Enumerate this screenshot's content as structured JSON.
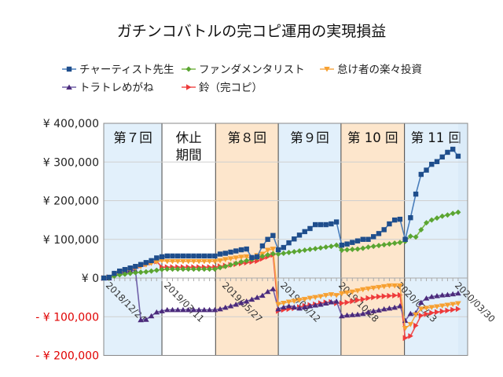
{
  "chart_data": {
    "type": "line",
    "title": "ガチンコバトルの完コピ運用の実現損益",
    "xlabel": "",
    "ylabel": "",
    "ylim": [
      -200000,
      400000
    ],
    "yticks": [
      400000,
      300000,
      200000,
      100000,
      0,
      -100000,
      -200000
    ],
    "ytick_labels": [
      "¥ 400,000",
      "¥ 300,000",
      "¥ 200,000",
      "¥ 100,000",
      "¥ 0",
      "- ¥ 100,000",
      "- ¥ 200,000"
    ],
    "negative_label_color": "#e00000",
    "grid": true,
    "legend_position": "top",
    "xtick_labels": [
      "2018/12/24",
      "2019/03/11",
      "2019/05/27",
      "2019/08/12",
      "2019/10/28",
      "2020/01/13",
      "2020/03/30"
    ],
    "x": [
      "2018/12/24",
      "2018/12/31",
      "2019/01/07",
      "2019/01/14",
      "2019/01/21",
      "2019/01/28",
      "2019/02/04",
      "2019/02/11",
      "2019/02/18",
      "2019/02/25",
      "2019/03/04",
      "2019/03/11",
      "2019/03/18",
      "2019/03/25",
      "2019/04/01",
      "2019/04/08",
      "2019/04/15",
      "2019/04/22",
      "2019/04/29",
      "2019/05/06",
      "2019/05/13",
      "2019/05/20",
      "2019/05/27",
      "2019/06/03",
      "2019/06/10",
      "2019/06/17",
      "2019/06/24",
      "2019/07/01",
      "2019/07/08",
      "2019/07/15",
      "2019/07/22",
      "2019/07/29",
      "2019/08/05",
      "2019/08/12",
      "2019/08/19",
      "2019/08/26",
      "2019/09/02",
      "2019/09/09",
      "2019/09/16",
      "2019/09/23",
      "2019/09/30",
      "2019/10/07",
      "2019/10/14",
      "2019/10/21",
      "2019/10/28",
      "2019/11/04",
      "2019/11/11",
      "2019/11/18",
      "2019/11/25",
      "2019/12/02",
      "2019/12/09",
      "2019/12/16",
      "2019/12/23",
      "2019/12/30",
      "2020/01/06",
      "2020/01/13",
      "2020/01/20",
      "2020/01/27",
      "2020/02/03",
      "2020/02/10",
      "2020/02/17",
      "2020/02/24",
      "2020/03/02",
      "2020/03/09",
      "2020/03/16",
      "2020/03/23",
      "2020/03/30",
      "2020/04/06"
    ],
    "periods": [
      {
        "label": "第７回",
        "start": "2018/12/24",
        "end": "2019/03/11",
        "color": "#e2f0fb"
      },
      {
        "label": "休止\n期間",
        "start": "2019/03/11",
        "end": "2019/05/21",
        "color": "#ffffff"
      },
      {
        "label": "第８回",
        "start": "2019/05/21",
        "end": "2019/08/12",
        "color": "#fde6cc"
      },
      {
        "label": "第９回",
        "start": "2019/08/12",
        "end": "2019/11/03",
        "color": "#e2f0fb"
      },
      {
        "label": "第 10 回",
        "start": "2019/11/03",
        "end": "2020/01/26",
        "color": "#fde6cc"
      },
      {
        "label": "第 11 回",
        "start": "2020/01/26",
        "end": "2020/04/20",
        "color": "#e2f0fb"
      }
    ],
    "series": [
      {
        "name": "チャーティスト先生",
        "marker": "square",
        "color": "#1f4e8c",
        "line_color": "#4a7ebb",
        "values": [
          0,
          2000,
          12000,
          18000,
          22000,
          26000,
          30000,
          35000,
          40000,
          45000,
          52000,
          55000,
          57000,
          57000,
          57000,
          57000,
          57000,
          57000,
          57000,
          57000,
          57000,
          57000,
          62000,
          64000,
          67000,
          70000,
          73000,
          75000,
          53000,
          55000,
          83000,
          100000,
          110000,
          73000,
          79000,
          91000,
          101000,
          111000,
          120000,
          128000,
          138000,
          138000,
          138000,
          140000,
          145000,
          85000,
          88000,
          92000,
          96000,
          100000,
          100000,
          107000,
          115000,
          125000,
          140000,
          150000,
          152000,
          100000,
          156000,
          217000,
          268000,
          279000,
          294000,
          301000,
          313000,
          325000,
          333000,
          315000
        ]
      },
      {
        "name": "ファンダメンタリスト",
        "marker": "diamond",
        "color": "#5aa532",
        "line_color": "#7ab648",
        "values": [
          0,
          0,
          5000,
          8000,
          10000,
          12000,
          14000,
          15000,
          16000,
          18000,
          20000,
          22000,
          23000,
          23000,
          23000,
          23000,
          23000,
          23000,
          23000,
          23000,
          23000,
          23000,
          27000,
          30000,
          34000,
          38000,
          42000,
          45000,
          48000,
          52000,
          56000,
          60000,
          63000,
          62000,
          64000,
          66000,
          68000,
          70000,
          72000,
          74000,
          76000,
          78000,
          80000,
          82000,
          85000,
          72000,
          73000,
          74000,
          75000,
          77000,
          80000,
          82000,
          84000,
          86000,
          88000,
          90000,
          92000,
          95000,
          108000,
          106000,
          125000,
          143000,
          150000,
          155000,
          160000,
          163000,
          167000,
          170000
        ]
      },
      {
        "name": "怠け者の楽々投資",
        "marker": "triangle-down",
        "color": "#f7a030",
        "line_color": "#f5a84a",
        "values": [
          0,
          2000,
          8000,
          14000,
          18000,
          22000,
          26000,
          30000,
          34000,
          38000,
          42000,
          45000,
          43000,
          43000,
          43000,
          43000,
          43000,
          43000,
          43000,
          43000,
          43000,
          43000,
          45000,
          48000,
          50000,
          52000,
          54000,
          55000,
          50000,
          58000,
          62000,
          72000,
          75000,
          -68000,
          -65000,
          -62000,
          -60000,
          -57000,
          -55000,
          -52000,
          -50000,
          -48000,
          -45000,
          -43000,
          -45000,
          -40000,
          -38000,
          -36000,
          -33000,
          -30000,
          -28000,
          -26000,
          -24000,
          -22000,
          -20000,
          -20000,
          -20000,
          -130000,
          -120000,
          -95000,
          -80000,
          -78000,
          -76000,
          -74000,
          -72000,
          -70000,
          -68000,
          -66000
        ]
      },
      {
        "name": "トラトレめがね",
        "marker": "triangle-up",
        "color": "#4b2a7b",
        "line_color": "#7060a8",
        "values": [
          0,
          0,
          12000,
          16000,
          18000,
          20000,
          19000,
          -108000,
          -107000,
          -98000,
          -88000,
          -85000,
          -82000,
          -82000,
          -82000,
          -82000,
          -82000,
          -82000,
          -82000,
          -82000,
          -82000,
          -82000,
          -80000,
          -76000,
          -72000,
          -68000,
          -64000,
          -60000,
          -55000,
          -50000,
          -45000,
          -35000,
          -28000,
          -80000,
          -75000,
          -72000,
          -75000,
          -78000,
          -75000,
          -72000,
          -70000,
          -68000,
          -65000,
          -62000,
          -60000,
          -98000,
          -96000,
          -95000,
          -94000,
          -92000,
          -88000,
          -85000,
          -83000,
          -80000,
          -78000,
          -76000,
          -72000,
          -110000,
          -92000,
          -90000,
          -63000,
          -52000,
          -48000,
          -46000,
          -44000,
          -43000,
          -41000,
          -39000
        ]
      },
      {
        "name": "鈴（完コピ）",
        "marker": "triangle-right",
        "color": "#ee3a3a",
        "line_color": "#f05050",
        "values": [
          0,
          2000,
          10000,
          15000,
          20000,
          24000,
          28000,
          32000,
          36000,
          40000,
          43000,
          28000,
          28000,
          28000,
          28000,
          28000,
          28000,
          28000,
          28000,
          28000,
          28000,
          28000,
          30000,
          32000,
          34000,
          36000,
          38000,
          40000,
          42000,
          44000,
          50000,
          55000,
          60000,
          -85000,
          -82000,
          -80000,
          -78000,
          -75000,
          -72000,
          -70000,
          -68000,
          -65000,
          -63000,
          -62000,
          -65000,
          -65000,
          -63000,
          -60000,
          -57000,
          -55000,
          -52000,
          -50000,
          -48000,
          -47000,
          -46000,
          -45000,
          -44000,
          -155000,
          -150000,
          -123000,
          -97000,
          -93000,
          -90000,
          -88000,
          -86000,
          -84000,
          -82000,
          -80000
        ]
      }
    ]
  }
}
